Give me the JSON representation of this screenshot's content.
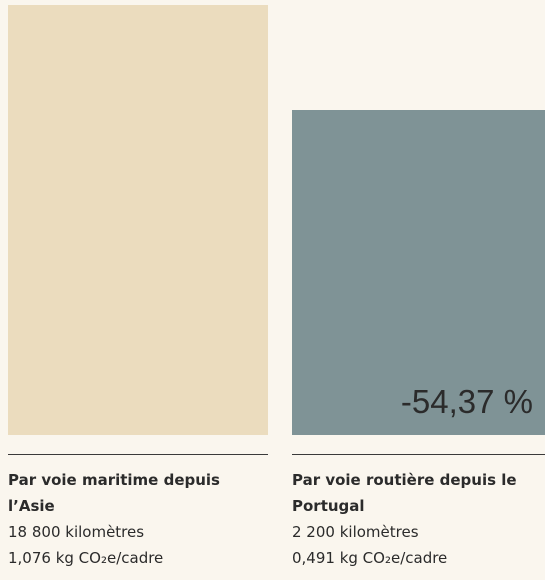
{
  "cards": [
    {
      "title": "Par voie maritime depuis l’Asie",
      "distance": "18 800 kilomètres",
      "emission": "1,076 kg CO₂e/cadre"
    },
    {
      "title": "Par voie routière depuis le Portugal",
      "distance": "2 200 kilomètres",
      "emission": "0,491 kg CO₂e/cadre",
      "badge": "-54,37 %"
    }
  ]
}
